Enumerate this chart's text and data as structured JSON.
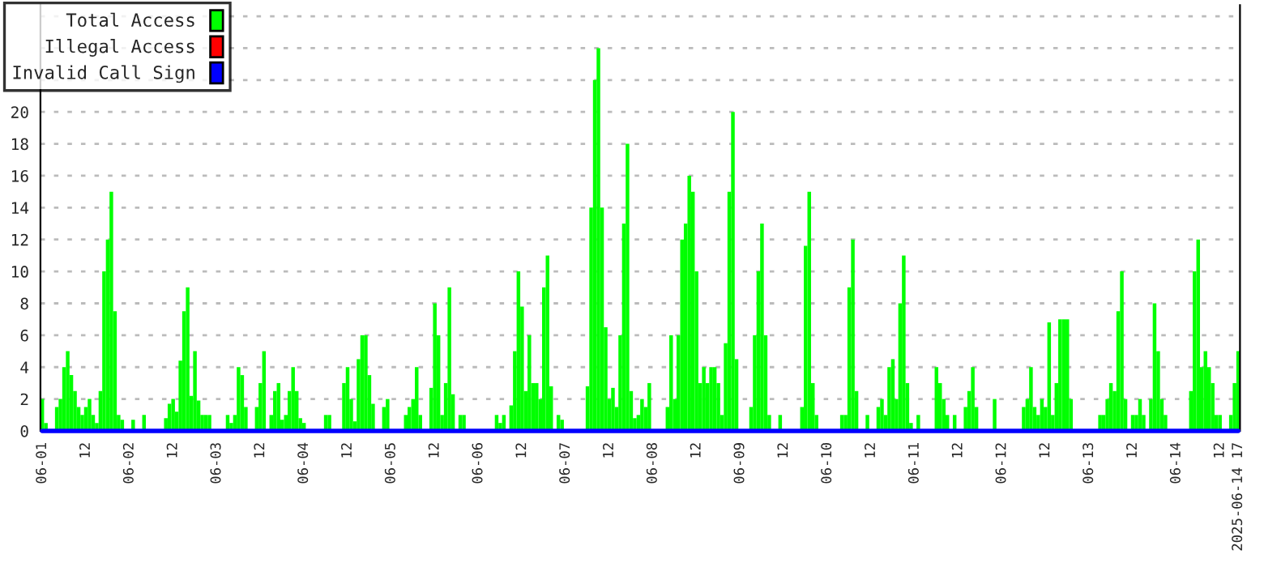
{
  "chart_data": {
    "type": "bar",
    "series": [
      {
        "name": "Total Access",
        "color": "#00ff00",
        "x": [
          "2025-06-01T00:00",
          "2025-06-01T01:00",
          "2025-06-01T04:00",
          "2025-06-01T05:00",
          "2025-06-01T06:00",
          "2025-06-01T07:00",
          "2025-06-01T08:00",
          "2025-06-01T09:00",
          "2025-06-01T10:00",
          "2025-06-01T11:00",
          "2025-06-01T12:00",
          "2025-06-01T13:00",
          "2025-06-01T14:00",
          "2025-06-01T15:00",
          "2025-06-01T16:00",
          "2025-06-01T17:00",
          "2025-06-01T18:00",
          "2025-06-01T19:00",
          "2025-06-01T20:00",
          "2025-06-01T21:00",
          "2025-06-01T22:00",
          "2025-06-02T01:00",
          "2025-06-02T04:00",
          "2025-06-02T10:00",
          "2025-06-02T11:00",
          "2025-06-02T12:00",
          "2025-06-02T13:00",
          "2025-06-02T14:00",
          "2025-06-02T15:00",
          "2025-06-02T16:00",
          "2025-06-02T17:00",
          "2025-06-02T18:00",
          "2025-06-02T19:00",
          "2025-06-02T20:00",
          "2025-06-02T21:00",
          "2025-06-02T22:00",
          "2025-06-03T03:00",
          "2025-06-03T04:00",
          "2025-06-03T05:00",
          "2025-06-03T06:00",
          "2025-06-03T07:00",
          "2025-06-03T08:00",
          "2025-06-03T11:00",
          "2025-06-03T12:00",
          "2025-06-03T13:00",
          "2025-06-03T15:00",
          "2025-06-03T16:00",
          "2025-06-03T17:00",
          "2025-06-03T18:00",
          "2025-06-03T19:00",
          "2025-06-03T20:00",
          "2025-06-03T21:00",
          "2025-06-03T22:00",
          "2025-06-03T23:00",
          "2025-06-04T00:00",
          "2025-06-04T06:00",
          "2025-06-04T07:00",
          "2025-06-04T11:00",
          "2025-06-04T12:00",
          "2025-06-04T13:00",
          "2025-06-04T14:00",
          "2025-06-04T15:00",
          "2025-06-04T16:00",
          "2025-06-04T17:00",
          "2025-06-04T18:00",
          "2025-06-04T19:00",
          "2025-06-04T22:00",
          "2025-06-04T23:00",
          "2025-06-05T04:00",
          "2025-06-05T05:00",
          "2025-06-05T06:00",
          "2025-06-05T07:00",
          "2025-06-05T08:00",
          "2025-06-05T11:00",
          "2025-06-05T12:00",
          "2025-06-05T13:00",
          "2025-06-05T14:00",
          "2025-06-05T15:00",
          "2025-06-05T16:00",
          "2025-06-05T17:00",
          "2025-06-05T19:00",
          "2025-06-05T20:00",
          "2025-06-06T05:00",
          "2025-06-06T06:00",
          "2025-06-06T07:00",
          "2025-06-06T09:00",
          "2025-06-06T10:00",
          "2025-06-06T11:00",
          "2025-06-06T12:00",
          "2025-06-06T13:00",
          "2025-06-06T14:00",
          "2025-06-06T15:00",
          "2025-06-06T16:00",
          "2025-06-06T17:00",
          "2025-06-06T18:00",
          "2025-06-06T19:00",
          "2025-06-06T20:00",
          "2025-06-06T22:00",
          "2025-06-06T23:00",
          "2025-06-07T06:00",
          "2025-06-07T07:00",
          "2025-06-07T08:00",
          "2025-06-07T09:00",
          "2025-06-07T10:00",
          "2025-06-07T11:00",
          "2025-06-07T12:00",
          "2025-06-07T13:00",
          "2025-06-07T14:00",
          "2025-06-07T15:00",
          "2025-06-07T16:00",
          "2025-06-07T17:00",
          "2025-06-07T18:00",
          "2025-06-07T19:00",
          "2025-06-07T20:00",
          "2025-06-07T21:00",
          "2025-06-07T22:00",
          "2025-06-07T23:00",
          "2025-06-08T04:00",
          "2025-06-08T05:00",
          "2025-06-08T06:00",
          "2025-06-08T07:00",
          "2025-06-08T08:00",
          "2025-06-08T09:00",
          "2025-06-08T10:00",
          "2025-06-08T11:00",
          "2025-06-08T12:00",
          "2025-06-08T13:00",
          "2025-06-08T14:00",
          "2025-06-08T15:00",
          "2025-06-08T16:00",
          "2025-06-08T17:00",
          "2025-06-08T18:00",
          "2025-06-08T19:00",
          "2025-06-08T20:00",
          "2025-06-08T21:00",
          "2025-06-08T22:00",
          "2025-06-08T23:00",
          "2025-06-09T03:00",
          "2025-06-09T04:00",
          "2025-06-09T05:00",
          "2025-06-09T06:00",
          "2025-06-09T07:00",
          "2025-06-09T08:00",
          "2025-06-09T11:00",
          "2025-06-09T17:00",
          "2025-06-09T18:00",
          "2025-06-09T19:00",
          "2025-06-09T20:00",
          "2025-06-09T21:00",
          "2025-06-10T04:00",
          "2025-06-10T05:00",
          "2025-06-10T06:00",
          "2025-06-10T07:00",
          "2025-06-10T08:00",
          "2025-06-10T11:00",
          "2025-06-10T14:00",
          "2025-06-10T15:00",
          "2025-06-10T16:00",
          "2025-06-10T17:00",
          "2025-06-10T18:00",
          "2025-06-10T19:00",
          "2025-06-10T20:00",
          "2025-06-10T21:00",
          "2025-06-10T22:00",
          "2025-06-10T23:00",
          "2025-06-11T01:00",
          "2025-06-11T06:00",
          "2025-06-11T07:00",
          "2025-06-11T08:00",
          "2025-06-11T09:00",
          "2025-06-11T11:00",
          "2025-06-11T14:00",
          "2025-06-11T15:00",
          "2025-06-11T16:00",
          "2025-06-11T17:00",
          "2025-06-11T22:00",
          "2025-06-12T06:00",
          "2025-06-12T07:00",
          "2025-06-12T08:00",
          "2025-06-12T09:00",
          "2025-06-12T10:00",
          "2025-06-12T11:00",
          "2025-06-12T12:00",
          "2025-06-12T13:00",
          "2025-06-12T14:00",
          "2025-06-12T15:00",
          "2025-06-12T16:00",
          "2025-06-12T17:00",
          "2025-06-12T18:00",
          "2025-06-12T19:00",
          "2025-06-13T03:00",
          "2025-06-13T04:00",
          "2025-06-13T05:00",
          "2025-06-13T06:00",
          "2025-06-13T07:00",
          "2025-06-13T08:00",
          "2025-06-13T09:00",
          "2025-06-13T10:00",
          "2025-06-13T12:00",
          "2025-06-13T13:00",
          "2025-06-13T14:00",
          "2025-06-13T15:00",
          "2025-06-13T17:00",
          "2025-06-13T18:00",
          "2025-06-13T19:00",
          "2025-06-13T20:00",
          "2025-06-13T21:00",
          "2025-06-14T04:00",
          "2025-06-14T05:00",
          "2025-06-14T06:00",
          "2025-06-14T07:00",
          "2025-06-14T08:00",
          "2025-06-14T09:00",
          "2025-06-14T10:00",
          "2025-06-14T11:00",
          "2025-06-14T12:00",
          "2025-06-14T15:00",
          "2025-06-14T16:00",
          "2025-06-14T17:00"
        ],
        "values": [
          2,
          0.5,
          1.5,
          2,
          4,
          5,
          3.5,
          2.5,
          1.5,
          1,
          1.5,
          2,
          1,
          0.5,
          2.5,
          10,
          12,
          15,
          7.5,
          1,
          0.7,
          0.7,
          1,
          0.8,
          1.7,
          2,
          1.2,
          4.4,
          7.5,
          9,
          2.2,
          5,
          1.9,
          1,
          1,
          1,
          1,
          0.5,
          1,
          4,
          3.5,
          1.5,
          1.5,
          3,
          5,
          1,
          2.5,
          3,
          0.7,
          1,
          2.5,
          4,
          2.5,
          0.8,
          0.5,
          1,
          1,
          3,
          4,
          2,
          0.6,
          4.5,
          6,
          6,
          3.5,
          1.7,
          1.5,
          2,
          1,
          1.5,
          2,
          4,
          1,
          2.7,
          8,
          6,
          1,
          3,
          9,
          2.3,
          1,
          1,
          1,
          0.5,
          1,
          1.6,
          5,
          10,
          7.8,
          2.5,
          6,
          3,
          3,
          2,
          9,
          11,
          2.8,
          1,
          0.7,
          2.8,
          14,
          22,
          24,
          14,
          6.5,
          2,
          2.7,
          1.5,
          6,
          13,
          18,
          2.5,
          0.8,
          1,
          2,
          1.5,
          3,
          1.5,
          6,
          2,
          6,
          12,
          13,
          16,
          15,
          10,
          3,
          4,
          3,
          4,
          4,
          3,
          1,
          5.5,
          15,
          20,
          4.5,
          1.5,
          6,
          10,
          13,
          6,
          1,
          1,
          1.5,
          11.6,
          15,
          3,
          1,
          1,
          1,
          9,
          12,
          2.5,
          1,
          1.5,
          2,
          1,
          4,
          4.5,
          2,
          8,
          11,
          3,
          0.5,
          1,
          4,
          3,
          2,
          1,
          1,
          1.5,
          2.5,
          4,
          1.5,
          2,
          1.5,
          2,
          4,
          1.5,
          1,
          2,
          1.5,
          6.8,
          1,
          3,
          7,
          7,
          7,
          2,
          1,
          1,
          2,
          3,
          2.5,
          7.5,
          10,
          2,
          1,
          1,
          2,
          1,
          2,
          8,
          5,
          2,
          1,
          2.5,
          10,
          12,
          4,
          5,
          4,
          3,
          1,
          1,
          1,
          3,
          5
        ]
      },
      {
        "name": "Illegal Access",
        "color": "#ff0000",
        "type": "line"
      },
      {
        "name": "Invalid Call Sign",
        "color": "#0000ff",
        "type": "line",
        "x": [
          "2025-06-01T00:00",
          "2025-06-14T17:00"
        ],
        "values": [
          0,
          0
        ]
      }
    ],
    "xlim": [
      "2025-05-31T23:30",
      "2025-06-14T17:30"
    ],
    "xticks": [
      {
        "value": "2025-06-01T00:00",
        "label": "06-01"
      },
      {
        "value": "2025-06-01T12:00",
        "label": "12"
      },
      {
        "value": "2025-06-02T00:00",
        "label": "06-02"
      },
      {
        "value": "2025-06-02T12:00",
        "label": "12"
      },
      {
        "value": "2025-06-03T00:00",
        "label": "06-03"
      },
      {
        "value": "2025-06-03T12:00",
        "label": "12"
      },
      {
        "value": "2025-06-04T00:00",
        "label": "06-04"
      },
      {
        "value": "2025-06-04T12:00",
        "label": "12"
      },
      {
        "value": "2025-06-05T00:00",
        "label": "06-05"
      },
      {
        "value": "2025-06-05T12:00",
        "label": "12"
      },
      {
        "value": "2025-06-06T00:00",
        "label": "06-06"
      },
      {
        "value": "2025-06-06T12:00",
        "label": "12"
      },
      {
        "value": "2025-06-07T00:00",
        "label": "06-07"
      },
      {
        "value": "2025-06-07T12:00",
        "label": "12"
      },
      {
        "value": "2025-06-08T00:00",
        "label": "06-08"
      },
      {
        "value": "2025-06-08T12:00",
        "label": "12"
      },
      {
        "value": "2025-06-09T00:00",
        "label": "06-09"
      },
      {
        "value": "2025-06-09T12:00",
        "label": "12"
      },
      {
        "value": "2025-06-10T00:00",
        "label": "06-10"
      },
      {
        "value": "2025-06-10T12:00",
        "label": "12"
      },
      {
        "value": "2025-06-11T00:00",
        "label": "06-11"
      },
      {
        "value": "2025-06-11T12:00",
        "label": "12"
      },
      {
        "value": "2025-06-12T00:00",
        "label": "06-12"
      },
      {
        "value": "2025-06-12T12:00",
        "label": "12"
      },
      {
        "value": "2025-06-13T00:00",
        "label": "06-13"
      },
      {
        "value": "2025-06-13T12:00",
        "label": "12"
      },
      {
        "value": "2025-06-14T00:00",
        "label": "06-14"
      },
      {
        "value": "2025-06-14T12:00",
        "label": "12"
      },
      {
        "value": "2025-06-14T17:00",
        "label": "2025-06-14 17"
      }
    ],
    "ylim": [
      0,
      26.7
    ],
    "yticks": [
      0,
      2,
      4,
      6,
      8,
      10,
      12,
      14,
      16,
      18,
      20,
      {
        "value": 22,
        "label": null
      },
      {
        "value": 24,
        "label": null
      },
      {
        "value": 26,
        "label": null
      }
    ],
    "grid": "y",
    "legend": "top left"
  }
}
